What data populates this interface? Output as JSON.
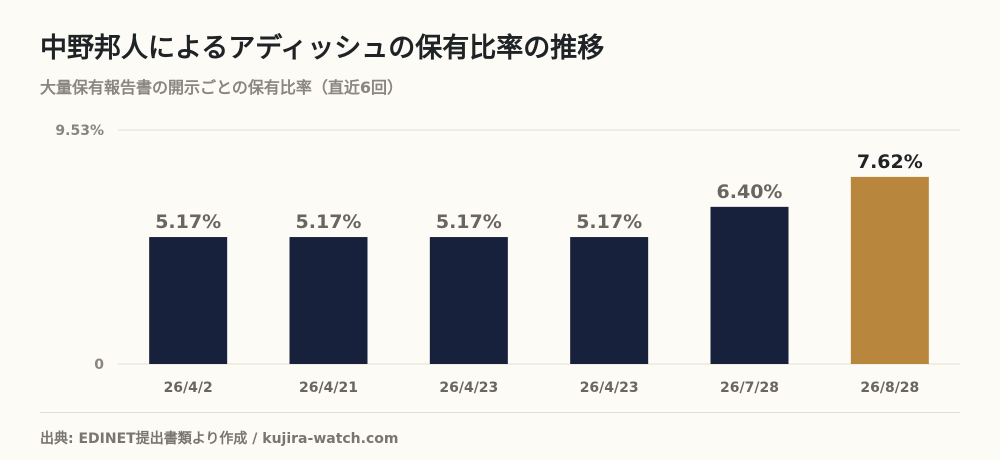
{
  "title": "中野邦人によるアディッシュの保有比率の推移",
  "subtitle": "大量保有報告書の開示ごとの保有比率（直近6回）",
  "source": "出典: EDINET提出書類より作成 / kujira-watch.com",
  "colors": {
    "bar": "#17213b",
    "highlight": "#b8863c",
    "grid": "#e4dfcf",
    "label": "#6b6560",
    "highlight_label": "#1f2326",
    "axis_text": "#8a8580"
  },
  "chart_data": {
    "type": "bar",
    "title": "中野邦人によるアディッシュの保有比率の推移",
    "subtitle": "大量保有報告書の開示ごとの保有比率（直近6回）",
    "categories": [
      "26/4/2",
      "26/4/21",
      "26/4/23",
      "26/4/23",
      "26/7/28",
      "26/8/28"
    ],
    "values": [
      5.17,
      5.17,
      5.17,
      5.17,
      6.4,
      7.62
    ],
    "value_labels": [
      "5.17%",
      "5.17%",
      "5.17%",
      "5.17%",
      "6.40%",
      "7.62%"
    ],
    "highlight_index": 5,
    "y_tick_labels": [
      "9.53%",
      "0"
    ],
    "ylim": [
      0,
      9.53
    ],
    "grid": true,
    "xlabel": "",
    "ylabel": ""
  }
}
